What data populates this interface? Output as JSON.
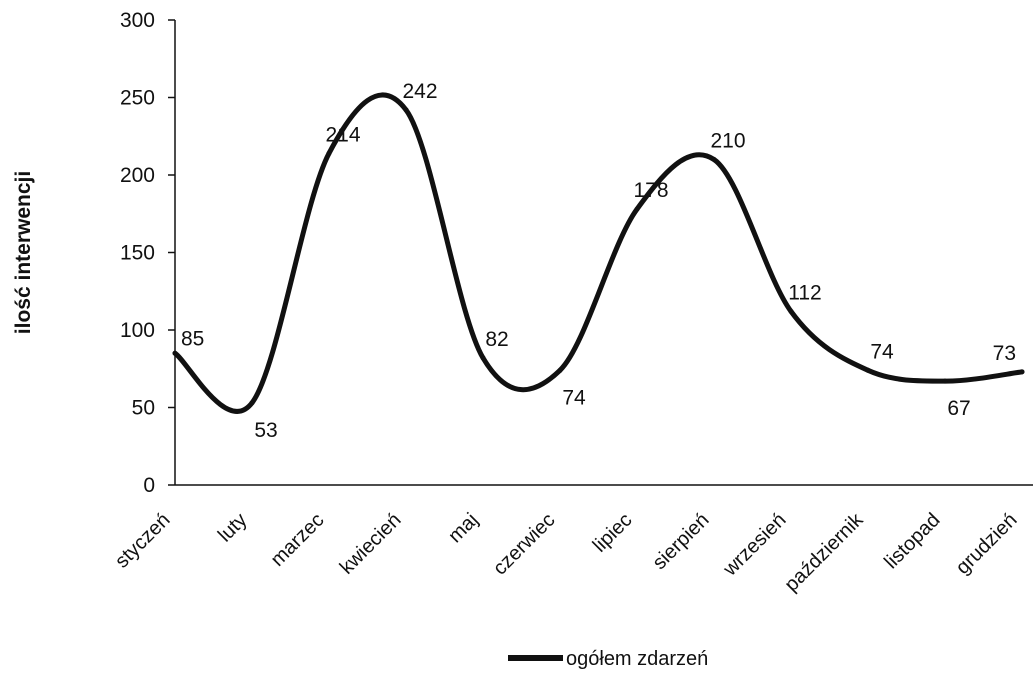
{
  "chart_data": {
    "type": "line",
    "title": "",
    "xlabel": "",
    "ylabel": "ilość interwencji",
    "ylim": [
      0,
      300
    ],
    "yticks": [
      "0",
      "50",
      "100",
      "150",
      "200",
      "250",
      "300"
    ],
    "grid": false,
    "legend_position": "bottom-center",
    "categories": [
      "styczeń",
      "luty",
      "marzec",
      "kwiecień",
      "maj",
      "czerwiec",
      "lipiec",
      "sierpień",
      "wrzesień",
      "październik",
      "listopad",
      "grudzień"
    ],
    "series": [
      {
        "name": "ogółem zdarzeń",
        "color": "#111111",
        "smooth": true,
        "values": [
          85,
          53,
          214,
          242,
          82,
          74,
          178,
          210,
          112,
          74,
          67,
          73
        ],
        "labels": [
          "85",
          "53",
          "214",
          "242",
          "82",
          "74",
          "178",
          "210",
          "112",
          "74",
          "67",
          "73"
        ]
      }
    ]
  }
}
